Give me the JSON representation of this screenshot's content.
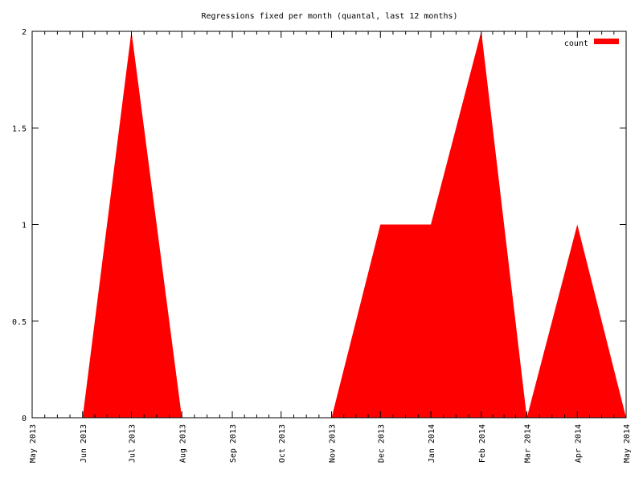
{
  "chart_data": {
    "type": "area",
    "title": "Regressions fixed per month (quantal, last 12 months)",
    "xlabel": "",
    "ylabel": "",
    "x": [
      "2013-05-01",
      "2013-06-01",
      "2013-07-01",
      "2013-08-01",
      "2013-09-01",
      "2013-10-01",
      "2013-11-01",
      "2013-12-01",
      "2014-01-01",
      "2014-02-01",
      "2014-03-01",
      "2014-04-01",
      "2014-05-01"
    ],
    "x_tick_labels": [
      "May 2013",
      "Jun 2013",
      "Jul 2013",
      "Aug 2013",
      "Sep 2013",
      "Oct 2013",
      "Nov 2013",
      "Dec 2013",
      "Jan 2014",
      "Feb 2014",
      "Mar 2014",
      "Apr 2014",
      "May 2014"
    ],
    "y_tick_labels": [
      "0",
      "0.5",
      "1",
      "1.5",
      "2"
    ],
    "ylim": [
      0,
      2
    ],
    "series": [
      {
        "name": "count",
        "color": "#ff0000",
        "values": [
          0,
          0,
          2,
          0,
          0,
          0,
          0,
          1,
          1,
          2,
          0,
          1,
          0
        ]
      }
    ],
    "legend_position": "top-right",
    "grid": false
  }
}
